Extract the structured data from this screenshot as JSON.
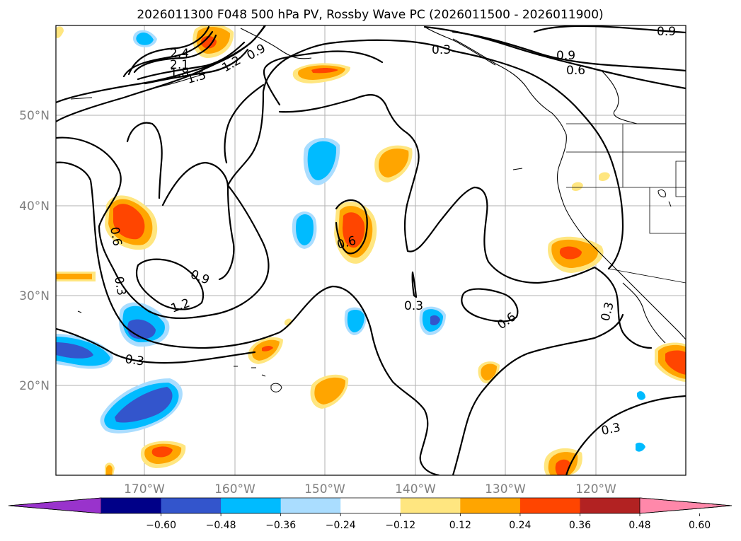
{
  "title": "2026011300 F048 500 hPa PV, Rossby Wave PC (2026011500 - 2026011900)",
  "lat_labels": [
    "50°N",
    "40°N",
    "30°N",
    "20°N"
  ],
  "lon_labels": [
    "170°W",
    "160°W",
    "150°W",
    "140°W",
    "130°W",
    "120°W"
  ],
  "contour_labels": [
    "0.9",
    "0.3",
    "2.4",
    "2.1",
    "1.8",
    "1.5",
    "1.2",
    "0.9",
    "0.9",
    "0.6",
    "0.6",
    "0.3",
    "0.9",
    "1.2",
    "0.6",
    "0.3",
    "0.6",
    "0.3",
    "0.3",
    "0.3"
  ],
  "colorbar": {
    "ticks": [
      "−0.60",
      "−0.48",
      "−0.36",
      "−0.24",
      "−0.12",
      "0.12",
      "0.24",
      "0.36",
      "0.48",
      "0.60"
    ],
    "colors": [
      "#9933cc",
      "#000088",
      "#3355cc",
      "#00bbff",
      "#aaddff",
      "#ffffff",
      "#ffe680",
      "#ffa500",
      "#ff4500",
      "#b22222",
      "#ff88aa"
    ]
  }
}
